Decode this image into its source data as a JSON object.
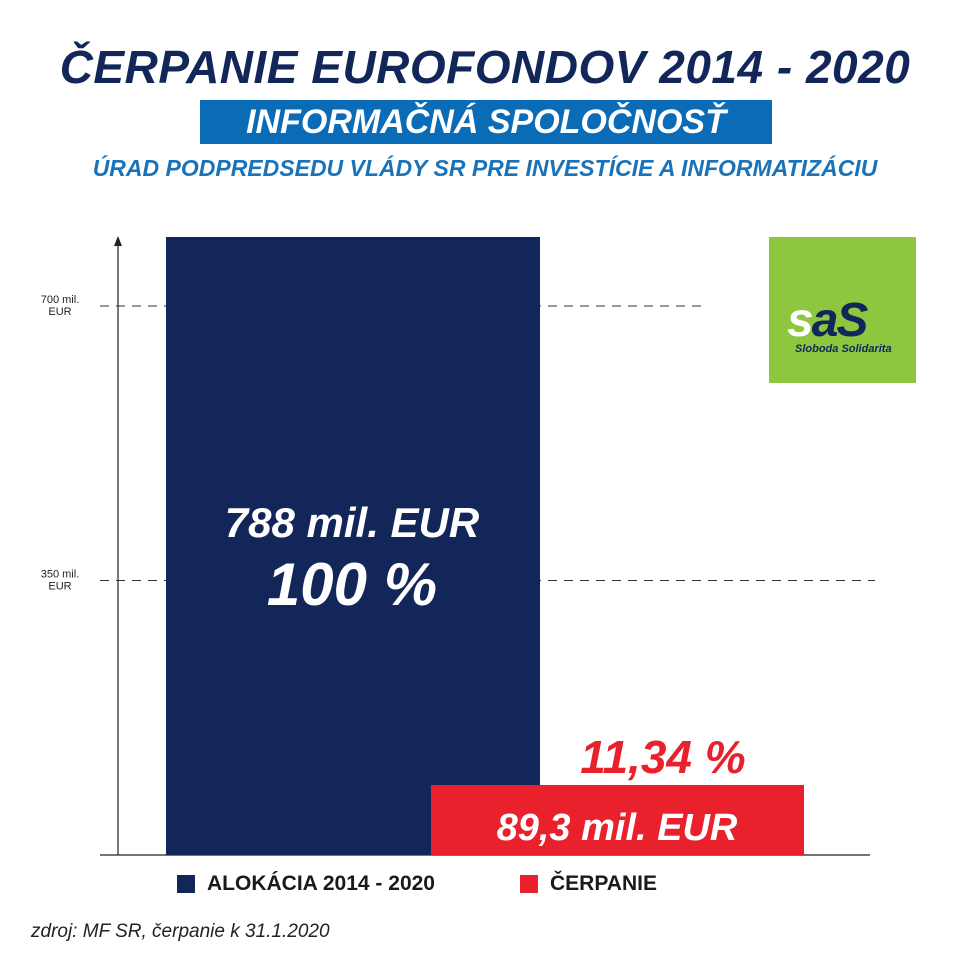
{
  "header": {
    "title": "ČERPANIE EUROFONDOV 2014 - 2020",
    "subtitle": "INFORMAČNÁ SPOLOČNOSŤ",
    "office": "ÚRAD PODPREDSEDU VLÁDY SR PRE INVESTÍCIE A INFORMATIZÁCIU"
  },
  "logo": {
    "mark_a": "s",
    "mark_b": "aS",
    "tagline": "Sloboda Solidarita"
  },
  "colors": {
    "navy": "#13265a",
    "red": "#e8212d",
    "blue": "#0a6cb7",
    "green": "#8dc63f"
  },
  "chart_data": {
    "type": "bar",
    "categories": [
      "ALOKÁCIA 2014 - 2020",
      "ČERPANIE"
    ],
    "values": [
      788,
      89.3
    ],
    "unit": "mil. EUR",
    "ylim": [
      0,
      788
    ],
    "yticks": [
      {
        "value": 700,
        "line1": "700 mil.",
        "line2": "EUR"
      },
      {
        "value": 350,
        "line1": "350 mil.",
        "line2": "EUR"
      }
    ],
    "bar_labels": [
      {
        "amount": "788 mil. EUR",
        "percent": "100 %"
      },
      {
        "amount": "89,3 mil. EUR",
        "percent": "11,34 %"
      }
    ],
    "legend": [
      "ALOKÁCIA 2014 - 2020",
      "ČERPANIE"
    ],
    "source": "zdroj: MF SR, čerpanie k 31.1.2020"
  }
}
